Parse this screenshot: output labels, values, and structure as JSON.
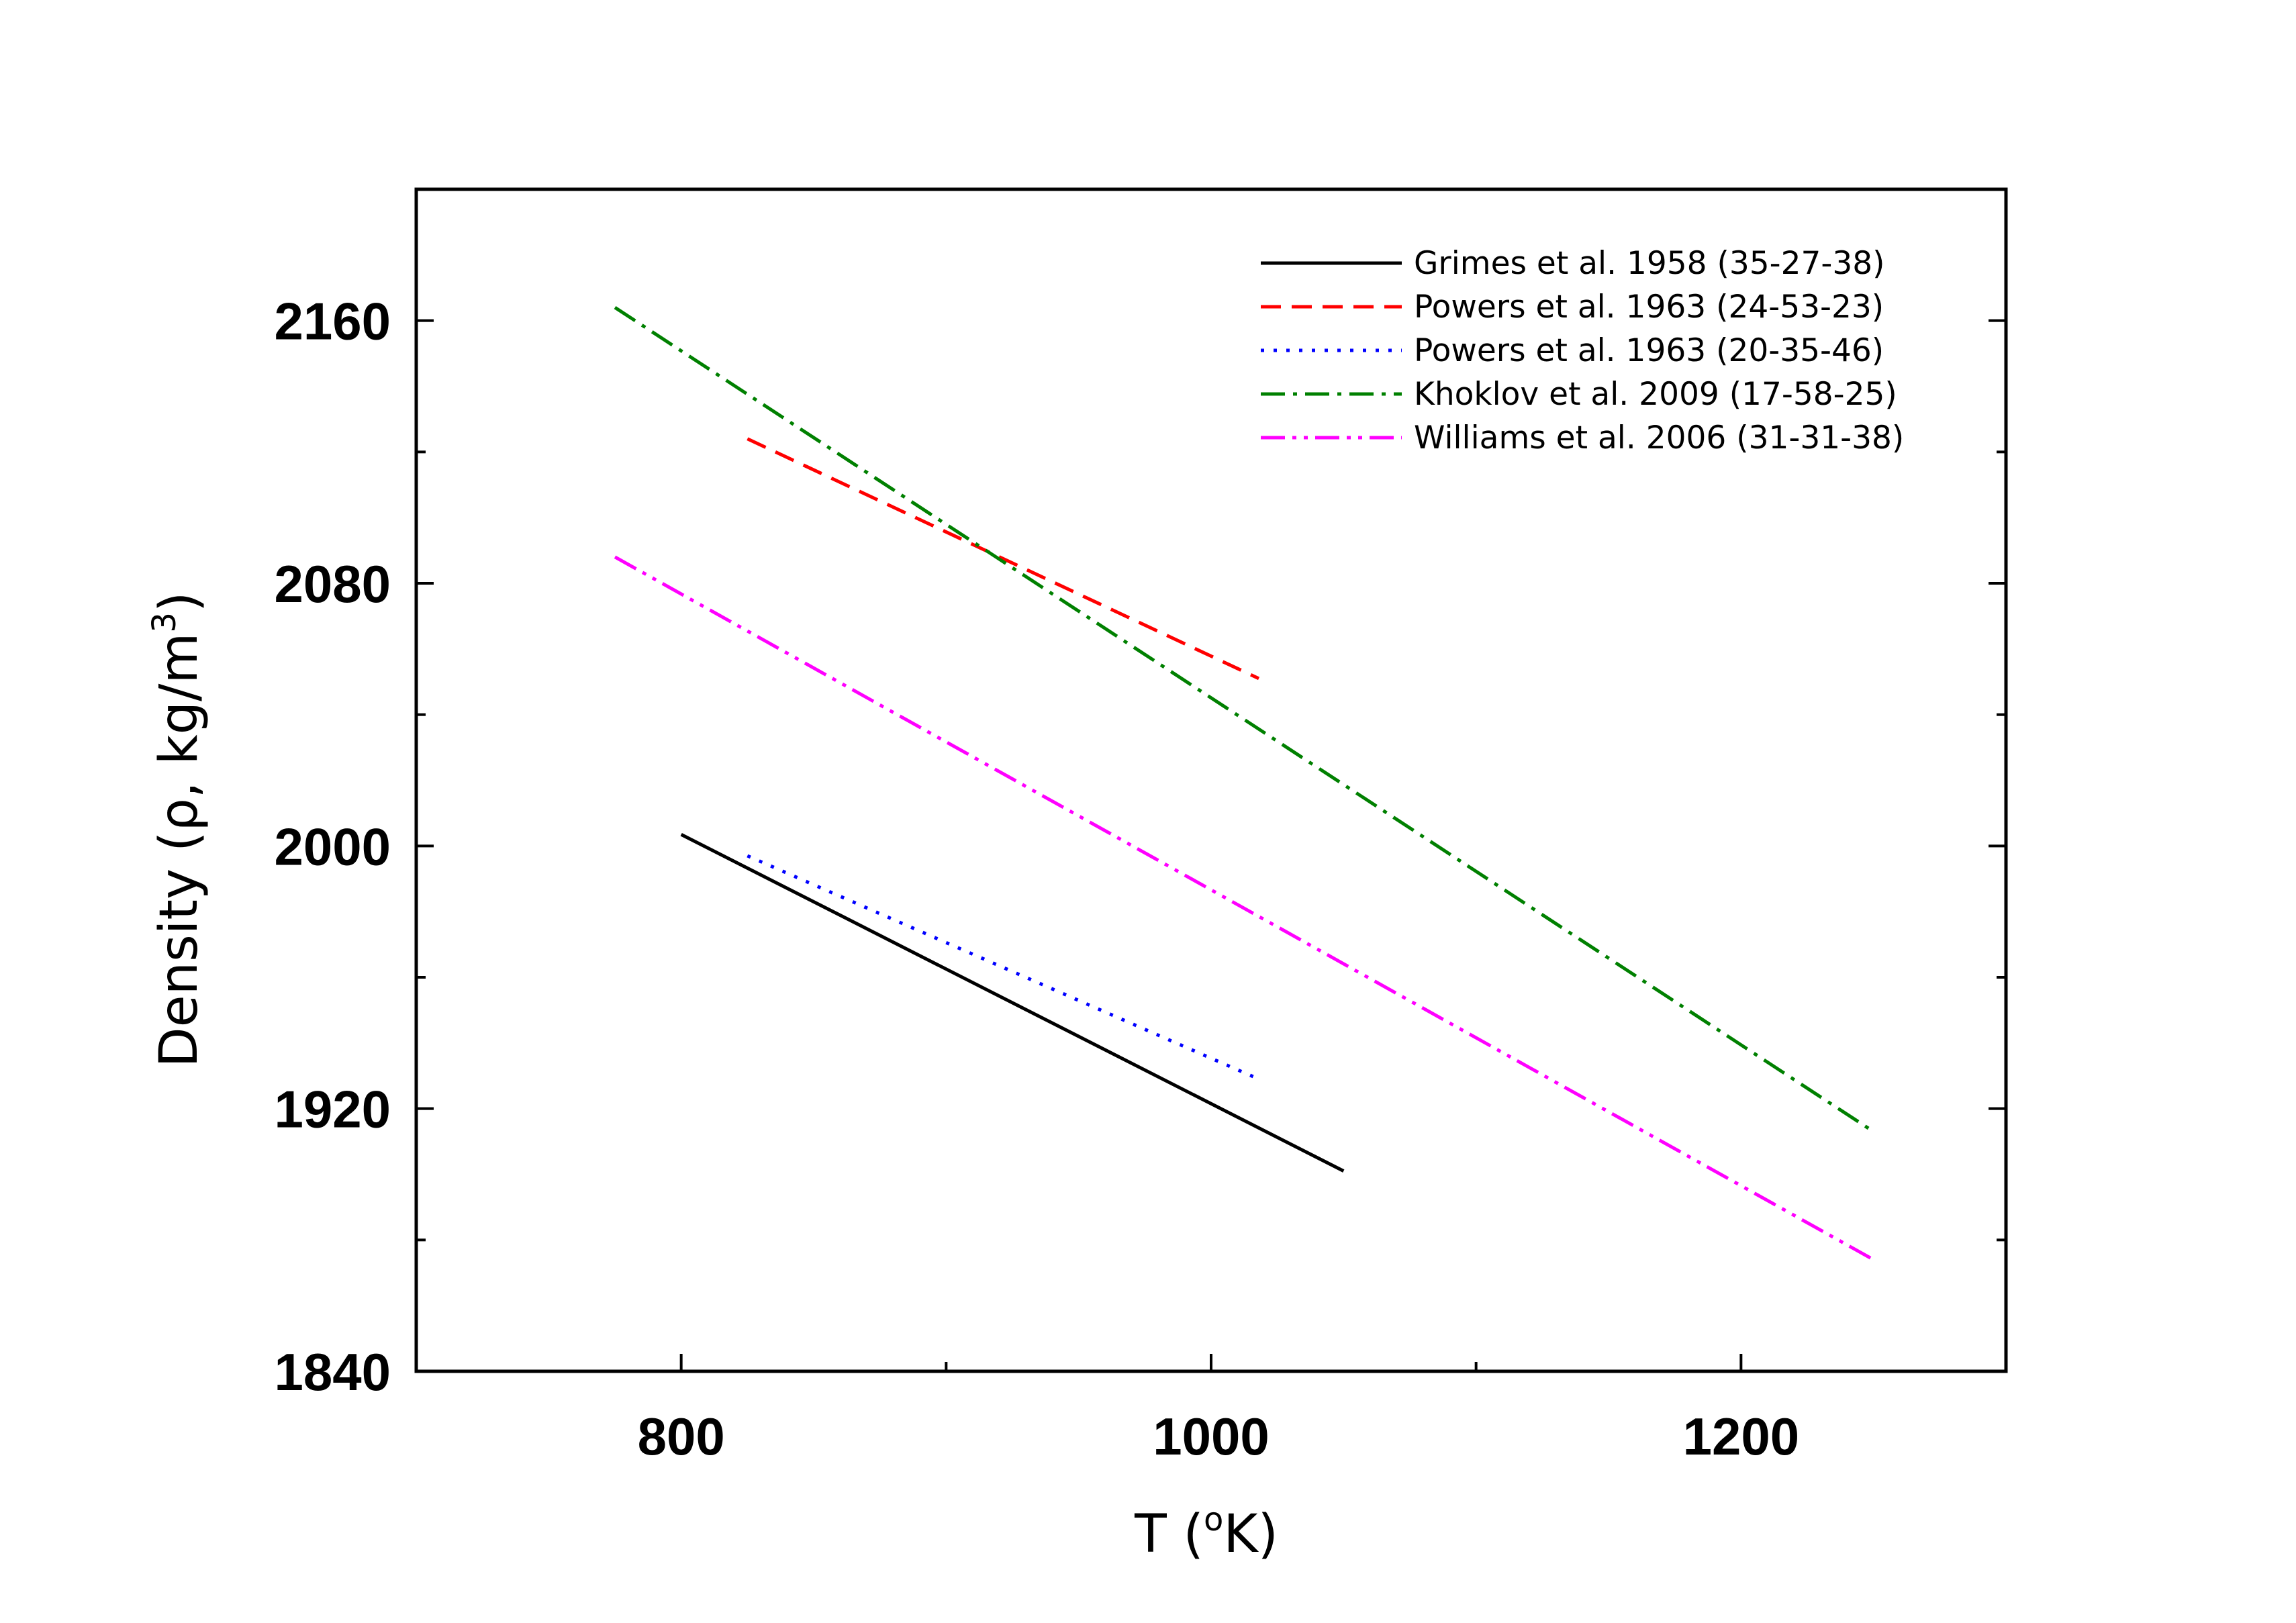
{
  "chart_data": {
    "type": "line",
    "title": "",
    "xlabel": "T (",
    "xlabel_sup": "o",
    "xlabel_end": "K)",
    "ylabel": "Density (ρ, kg/m",
    "ylabel_sup": "3",
    "ylabel_end": ")",
    "xlim": [
      700,
      1300
    ],
    "ylim": [
      1840,
      2200
    ],
    "xticks": [
      800,
      1000,
      1200
    ],
    "xtick_labels": [
      "800",
      "1000",
      "1200"
    ],
    "xminor": [
      900,
      1100
    ],
    "yticks": [
      1840,
      1920,
      2000,
      2080,
      2160
    ],
    "ytick_labels": [
      "1840",
      "1920",
      "2000",
      "2080",
      "2160"
    ],
    "yminor": [
      1880,
      1960,
      2040,
      2120
    ],
    "grid": false,
    "legend_position": "top-right",
    "series": [
      {
        "name": "Grimes et al. 1958 (35-27-38)",
        "color": "#000000",
        "dash": "solid",
        "x": [
          800,
          1050
        ],
        "y": [
          2003.5,
          1901
        ]
      },
      {
        "name": "Powers et al. 1963 (24-53-23)",
        "color": "#ff0000",
        "dash": "dash",
        "x": [
          825,
          1018
        ],
        "y": [
          2124,
          2051
        ]
      },
      {
        "name": "Powers et al. 1963 (20-35-46)",
        "color": "#0000ff",
        "dash": "dot",
        "x": [
          825,
          1018
        ],
        "y": [
          1997,
          1929
        ]
      },
      {
        "name": "Khoklov et al. 2009 (17-58-25)",
        "color": "#008000",
        "dash": "dashdot",
        "x": [
          775,
          1250
        ],
        "y": [
          2164,
          1913
        ]
      },
      {
        "name": "Williams et al. 2006 (31-31-38)",
        "color": "#ff00ff",
        "dash": "dashdotdot",
        "x": [
          775,
          1250
        ],
        "y": [
          2088,
          1874
        ]
      }
    ]
  }
}
